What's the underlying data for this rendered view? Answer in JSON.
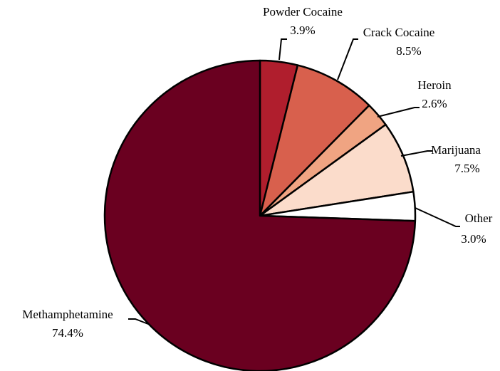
{
  "chart_data": {
    "type": "pie",
    "title": "",
    "start_angle_deg": 0,
    "direction": "clockwise",
    "slices": [
      {
        "name": "Powder Cocaine",
        "value": 3.9,
        "label": "3.9%",
        "color": "#B01E2D"
      },
      {
        "name": "Crack Cocaine",
        "value": 8.5,
        "label": "8.5%",
        "color": "#D8604D"
      },
      {
        "name": "Heroin",
        "value": 2.6,
        "label": "2.6%",
        "color": "#F0A482"
      },
      {
        "name": "Marijuana",
        "value": 7.5,
        "label": "7.5%",
        "color": "#FBDCCB"
      },
      {
        "name": "Other",
        "value": 3.0,
        "label": "3.0%",
        "color": "#FFFFFF"
      },
      {
        "name": "Methamphetamine",
        "value": 74.4,
        "label": "74.4%",
        "color": "#6A0020"
      }
    ],
    "outline_color": "#000000",
    "legend": "none"
  }
}
